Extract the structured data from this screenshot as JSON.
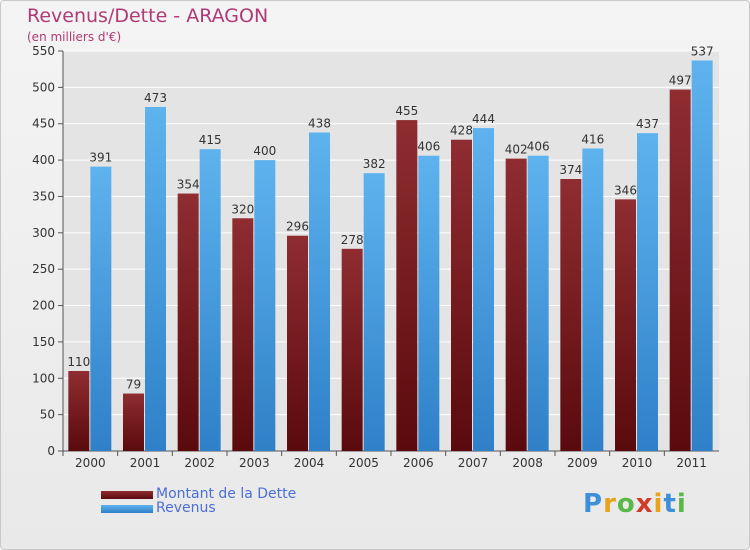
{
  "chart_data": {
    "type": "bar",
    "title": "Revenus/Dette - ARAGON",
    "subtitle": "(en milliers d'€)",
    "categories": [
      "2000",
      "2001",
      "2002",
      "2003",
      "2004",
      "2005",
      "2006",
      "2007",
      "2008",
      "2009",
      "2010",
      "2011"
    ],
    "series": [
      {
        "name": "Montant de la Dette",
        "values": [
          110,
          79,
          354,
          320,
          296,
          278,
          455,
          428,
          402,
          374,
          346,
          497
        ],
        "color": "#7a1a1c"
      },
      {
        "name": "Revenus",
        "values": [
          391,
          473,
          415,
          400,
          438,
          382,
          406,
          444,
          406,
          416,
          437,
          537
        ],
        "color": "#4ea3e0"
      }
    ],
    "ylim": [
      0,
      550
    ],
    "yticks": [
      0,
      50,
      100,
      150,
      200,
      250,
      300,
      350,
      400,
      450,
      500,
      550
    ],
    "grid": true,
    "legend": "bottom-left"
  },
  "logo": {
    "letters": [
      "P",
      "r",
      "o",
      "x",
      "i",
      "t",
      "i"
    ],
    "colors": [
      "#3d8fd8",
      "#e8a21c",
      "#5ab848",
      "#d23a2a",
      "#e8a21c",
      "#3d8fd8",
      "#5ab848"
    ]
  }
}
